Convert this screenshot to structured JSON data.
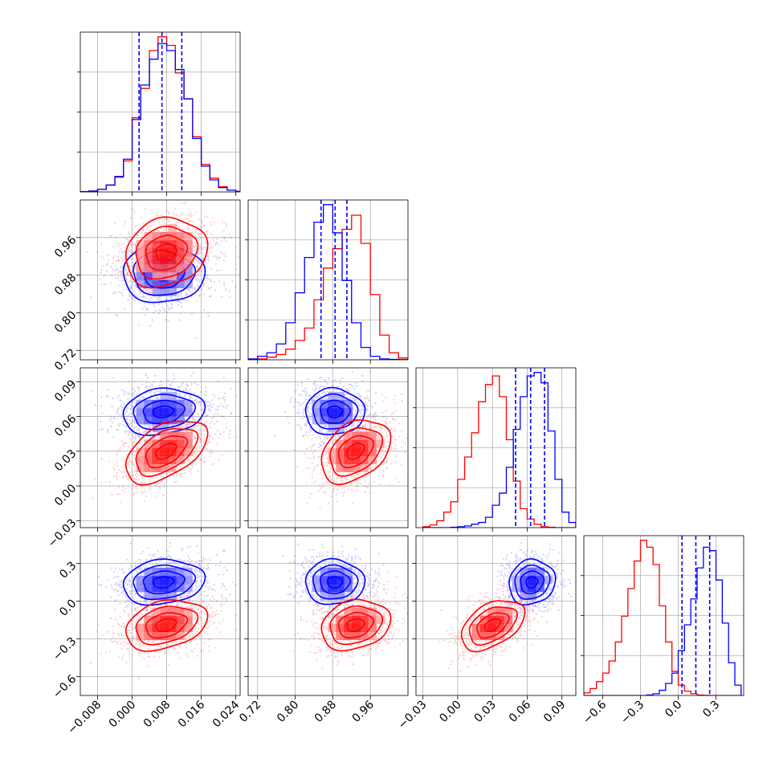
{
  "chart_data": {
    "type": "corner",
    "grid": true,
    "series": [
      {
        "name": "",
        "color": "#0000ff"
      },
      {
        "name": "",
        "color": "#ff0000"
      }
    ],
    "params": [
      {
        "range": [
          -0.012,
          0.025
        ],
        "ticks": [
          -0.008,
          0.0,
          0.008,
          0.016,
          0.024
        ],
        "tick_labels": [
          "−0.008",
          "0.000",
          "0.008",
          "0.016",
          "0.024"
        ]
      },
      {
        "range": [
          0.7,
          1.04
        ],
        "ticks": [
          0.72,
          0.8,
          0.88,
          0.96
        ],
        "tick_labels": [
          "0.72",
          "0.80",
          "0.88",
          "0.96"
        ]
      },
      {
        "range": [
          -0.036,
          0.102
        ],
        "ticks": [
          -0.03,
          0.0,
          0.03,
          0.06,
          0.09
        ],
        "tick_labels": [
          "−0.03",
          "0.00",
          "0.03",
          "0.06",
          "0.09"
        ]
      },
      {
        "range": [
          -0.75,
          0.52
        ],
        "ticks": [
          -0.6,
          -0.3,
          0.0,
          0.3
        ],
        "tick_labels": [
          "−0.6",
          "−0.3",
          "0.0",
          "0.3"
        ]
      }
    ],
    "quantiles": [
      [
        0.0016,
        0.0069,
        0.0115
      ],
      [
        0.855,
        0.885,
        0.91
      ],
      [
        0.05,
        0.063,
        0.075
      ],
      [
        0.03,
        0.14,
        0.25
      ]
    ],
    "histograms": [
      {
        "edges": [
          -0.012,
          -0.01,
          -0.008,
          -0.006,
          -0.004,
          -0.002,
          0.0,
          0.002,
          0.004,
          0.006,
          0.008,
          0.01,
          0.012,
          0.014,
          0.016,
          0.018,
          0.02,
          0.022,
          0.024,
          0.026
        ],
        "blue": [
          0.2,
          0.5,
          1.5,
          4,
          9,
          19,
          42,
          62,
          77,
          86,
          82,
          71,
          54,
          31,
          15,
          7,
          2.5,
          1,
          0.3
        ],
        "red": [
          0.1,
          0.5,
          1.5,
          4,
          8.5,
          18,
          43,
          60,
          82,
          90,
          85,
          69,
          54,
          32,
          16,
          8,
          3,
          1,
          0.3
        ]
      },
      {
        "edges": [
          0.7,
          0.72,
          0.74,
          0.76,
          0.78,
          0.8,
          0.82,
          0.84,
          0.86,
          0.88,
          0.9,
          0.92,
          0.94,
          0.96,
          0.98,
          1.0,
          1.02,
          1.04
        ],
        "blue": [
          0.5,
          2,
          4,
          9,
          21,
          38,
          58,
          78,
          88,
          72,
          45,
          21,
          7,
          2,
          0.5,
          0.2,
          0.1
        ],
        "red": [
          0.1,
          0.5,
          1.5,
          3,
          6,
          11,
          18,
          34,
          52,
          63,
          74,
          82,
          66,
          37,
          14,
          4,
          1
        ]
      },
      {
        "edges": [
          -0.03,
          -0.024,
          -0.018,
          -0.012,
          -0.006,
          0.0,
          0.006,
          0.012,
          0.018,
          0.024,
          0.03,
          0.036,
          0.042,
          0.048,
          0.054,
          0.06,
          0.066,
          0.072,
          0.078,
          0.084,
          0.09,
          0.096,
          0.102
        ],
        "blue": [
          0,
          0,
          0,
          0,
          0.2,
          0.5,
          1,
          2,
          3,
          6,
          13,
          20,
          35,
          57,
          76,
          88,
          90,
          84,
          56,
          28,
          9,
          3
        ],
        "red": [
          0.5,
          1.5,
          4,
          9,
          15,
          28,
          41,
          55,
          73,
          83,
          88,
          76,
          51,
          27,
          11,
          5,
          2,
          0.5,
          0.2,
          0,
          0,
          0
        ]
      },
      {
        "edges": [
          -0.75,
          -0.7,
          -0.65,
          -0.6,
          -0.55,
          -0.5,
          -0.45,
          -0.4,
          -0.35,
          -0.3,
          -0.25,
          -0.2,
          -0.15,
          -0.1,
          -0.05,
          0.0,
          0.05,
          0.1,
          0.15,
          0.2,
          0.25,
          0.3,
          0.35,
          0.4,
          0.45,
          0.5
        ],
        "blue": [
          0,
          0,
          0,
          0,
          0,
          0,
          0,
          0,
          0,
          0,
          0.3,
          1,
          3,
          7,
          13,
          26,
          41,
          56,
          74,
          86,
          84,
          67,
          42,
          19,
          6
        ],
        "red": [
          1.5,
          4,
          8,
          13,
          20,
          31,
          46,
          62,
          78,
          90,
          86,
          76,
          52,
          31,
          14,
          6,
          2.5,
          1,
          0.3,
          0.1,
          0,
          0,
          0,
          0,
          0
        ]
      }
    ],
    "blobs": {
      "blue": {
        "mean": [
          0.0072,
          0.884,
          0.064,
          0.15
        ],
        "sd": [
          0.0045,
          0.03,
          0.0095,
          0.085
        ]
      },
      "red": {
        "mean": [
          0.0078,
          0.928,
          0.03,
          -0.19
        ],
        "sd": [
          0.0045,
          0.035,
          0.013,
          0.095
        ]
      }
    },
    "correlations": {
      "blue": [
        [
          1,
          0,
          0.15,
          0.15
        ],
        [
          0,
          1,
          0,
          0
        ],
        [
          0.15,
          0,
          1,
          0.1
        ],
        [
          0.15,
          0,
          0.1,
          1
        ]
      ],
      "red": [
        [
          1,
          0.15,
          0.5,
          0.3
        ],
        [
          0.15,
          1,
          0.35,
          0.2
        ],
        [
          0.5,
          0.35,
          1,
          0.45
        ],
        [
          0.3,
          0.2,
          0.45,
          1
        ]
      ]
    }
  }
}
